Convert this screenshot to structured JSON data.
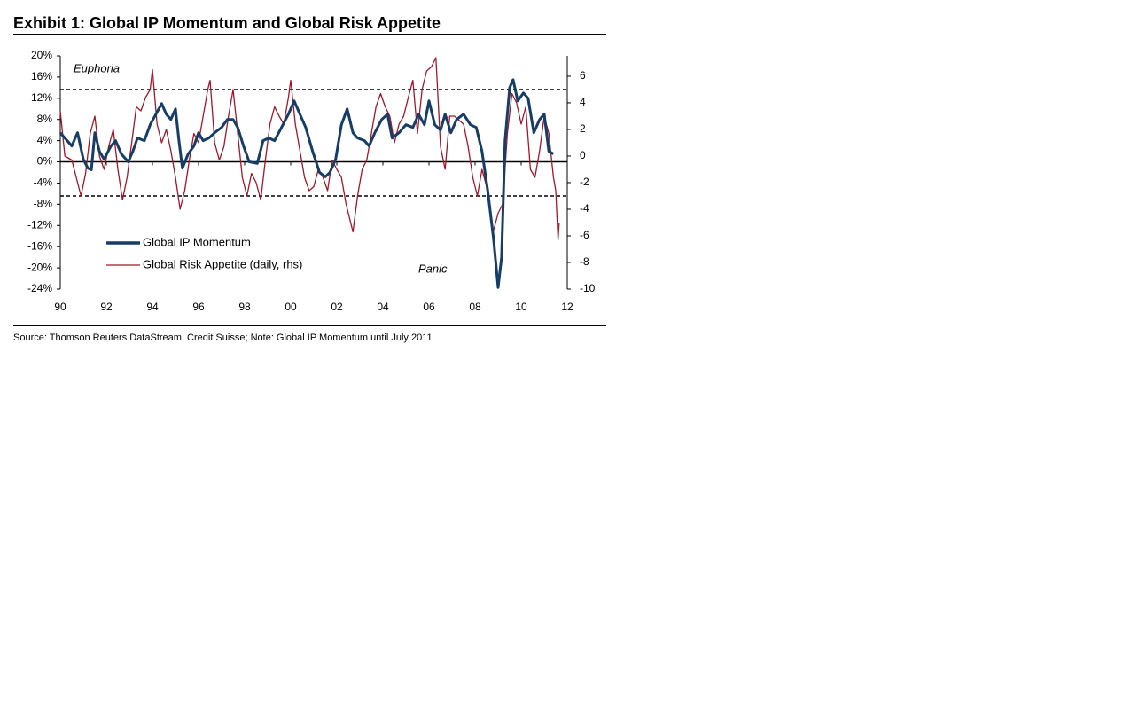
{
  "chart_data": {
    "type": "line",
    "title": "Exhibit 1: Global IP Momentum and Global Risk Appetite",
    "source": "Source: Thomson Reuters DataStream, Credit Suisse; Note: Global IP Momentum until July 2011",
    "annotations": [
      "Euphoria",
      "Panic"
    ],
    "xlim": [
      1990,
      2012
    ],
    "xticks": [
      {
        "value": 1990,
        "label": "90"
      },
      {
        "value": 1992,
        "label": "92"
      },
      {
        "value": 1994,
        "label": "94"
      },
      {
        "value": 1996,
        "label": "96"
      },
      {
        "value": 1998,
        "label": "98"
      },
      {
        "value": 2000,
        "label": "00"
      },
      {
        "value": 2002,
        "label": "02"
      },
      {
        "value": 2004,
        "label": "04"
      },
      {
        "value": 2006,
        "label": "06"
      },
      {
        "value": 2008,
        "label": "08"
      },
      {
        "value": 2010,
        "label": "10"
      },
      {
        "value": 2012,
        "label": "12"
      }
    ],
    "ylim": [
      -24,
      20
    ],
    "yticks": [
      {
        "value": 20,
        "label": "20%"
      },
      {
        "value": 16,
        "label": "16%"
      },
      {
        "value": 12,
        "label": "12%"
      },
      {
        "value": 8,
        "label": "8%"
      },
      {
        "value": 4,
        "label": "4%"
      },
      {
        "value": 0,
        "label": "0%"
      },
      {
        "value": -4,
        "label": "-4%"
      },
      {
        "value": -8,
        "label": "-8%"
      },
      {
        "value": -12,
        "label": "-12%"
      },
      {
        "value": -16,
        "label": "-16%"
      },
      {
        "value": -20,
        "label": "-20%"
      },
      {
        "value": -24,
        "label": "-24%"
      }
    ],
    "y2lim": [
      -10,
      7.53
    ],
    "y2ticks": [
      6,
      4,
      2,
      0,
      -2,
      -4,
      -6,
      -8,
      -10
    ],
    "y2_reference_lines": [
      5,
      -3
    ],
    "series": [
      {
        "name": "Global IP Momentum",
        "color": "#163d66",
        "axis": "y",
        "x": [
          1990.0,
          1990.3,
          1990.5,
          1990.75,
          1991.0,
          1991.2,
          1991.35,
          1991.5,
          1991.7,
          1991.9,
          1992.2,
          1992.4,
          1992.65,
          1992.95,
          1993.15,
          1993.35,
          1993.65,
          1993.9,
          1994.15,
          1994.4,
          1994.6,
          1994.8,
          1995.0,
          1995.15,
          1995.3,
          1995.55,
          1995.8,
          1996.0,
          1996.2,
          1996.45,
          1996.7,
          1997.0,
          1997.25,
          1997.5,
          1997.7,
          1997.95,
          1998.2,
          1998.55,
          1998.8,
          1999.05,
          1999.3,
          1999.6,
          1999.9,
          2000.15,
          2000.4,
          2000.65,
          2000.95,
          2001.25,
          2001.5,
          2001.7,
          2001.95,
          2002.2,
          2002.45,
          2002.7,
          2002.9,
          2003.2,
          2003.4,
          2003.65,
          2003.95,
          2004.2,
          2004.4,
          2004.7,
          2005.0,
          2005.3,
          2005.55,
          2005.8,
          2006.0,
          2006.25,
          2006.5,
          2006.7,
          2006.95,
          2007.2,
          2007.5,
          2007.8,
          2008.05,
          2008.3,
          2008.55,
          2008.8,
          2009.0,
          2009.15,
          2009.3,
          2009.5,
          2009.65,
          2009.85,
          2010.1,
          2010.3,
          2010.55,
          2010.8,
          2011.0,
          2011.2,
          2011.4
        ],
        "values": [
          5.5,
          4,
          3,
          5.5,
          0.5,
          -1.2,
          -1.5,
          5.5,
          2,
          0.5,
          3,
          4,
          1.5,
          0,
          2,
          4.5,
          4,
          7,
          9,
          11,
          9,
          8,
          10,
          4,
          -1.2,
          1.5,
          3,
          5.5,
          4,
          4.5,
          5.5,
          6.5,
          8,
          8,
          6.5,
          3,
          0,
          -0.3,
          4,
          4.5,
          4,
          6.5,
          9,
          11.5,
          9,
          6.5,
          2,
          -2,
          -2.8,
          -2,
          0.5,
          7,
          10,
          5.5,
          4.5,
          4,
          3,
          5.5,
          8,
          9,
          4.5,
          5.5,
          7,
          6.5,
          9,
          7,
          11.5,
          7,
          6,
          9,
          5.5,
          8,
          9,
          7,
          6.5,
          2,
          -5.5,
          -14.5,
          -23.7,
          -18,
          4,
          14,
          15.5,
          11.5,
          13,
          12,
          5.5,
          8,
          9,
          2,
          1.5
        ]
      },
      {
        "name": "Global Risk Appetite (daily, rhs)",
        "color": "#a3162b",
        "axis": "y2",
        "x": [
          1990.0,
          1990.2,
          1990.5,
          1990.9,
          1991.1,
          1991.3,
          1991.5,
          1991.7,
          1991.9,
          1992.1,
          1992.3,
          1992.5,
          1992.7,
          1992.9,
          1993.1,
          1993.3,
          1993.5,
          1993.7,
          1993.9,
          1994.0,
          1994.2,
          1994.4,
          1994.6,
          1994.8,
          1995.0,
          1995.2,
          1995.4,
          1995.6,
          1995.8,
          1996.0,
          1996.2,
          1996.4,
          1996.5,
          1996.7,
          1996.9,
          1997.1,
          1997.3,
          1997.5,
          1997.7,
          1997.9,
          1998.1,
          1998.3,
          1998.5,
          1998.7,
          1998.9,
          1999.1,
          1999.3,
          1999.5,
          1999.7,
          1999.9,
          2000.0,
          2000.2,
          2000.4,
          2000.6,
          2000.8,
          2001.0,
          2001.2,
          2001.4,
          2001.6,
          2001.8,
          2002.0,
          2002.2,
          2002.4,
          2002.6,
          2002.7,
          2002.9,
          2003.1,
          2003.3,
          2003.5,
          2003.7,
          2003.9,
          2004.1,
          2004.3,
          2004.5,
          2004.7,
          2004.9,
          2005.1,
          2005.3,
          2005.5,
          2005.7,
          2005.9,
          2006.1,
          2006.3,
          2006.5,
          2006.7,
          2006.9,
          2007.1,
          2007.3,
          2007.5,
          2007.7,
          2007.9,
          2008.1,
          2008.3,
          2008.5,
          2008.7,
          2008.8,
          2009.0,
          2009.2,
          2009.4,
          2009.6,
          2009.8,
          2010.0,
          2010.2,
          2010.4,
          2010.6,
          2010.8,
          2011.0,
          2011.2,
          2011.4,
          2011.5,
          2011.6,
          2011.65
        ],
        "values": [
          3.4,
          0,
          -0.3,
          -3,
          -1.3,
          1.7,
          3,
          0,
          -1,
          0.7,
          2,
          -1,
          -3.3,
          -1.6,
          1,
          3.7,
          3.4,
          4.4,
          5,
          6.5,
          2.4,
          1,
          2,
          0.4,
          -1.6,
          -4,
          -2.6,
          -0.3,
          1.7,
          1,
          3,
          5,
          5.7,
          1,
          -0.3,
          0.7,
          3,
          5,
          1.7,
          -1.6,
          -3,
          -1.3,
          -2,
          -3.3,
          -0.3,
          2.4,
          3.7,
          3,
          2.4,
          4.4,
          5.7,
          2.4,
          0.4,
          -1.6,
          -2.6,
          -2.3,
          -1,
          -1.6,
          -2.6,
          -0.3,
          -1,
          -1.6,
          -3.6,
          -5,
          -5.7,
          -3,
          -1,
          -0.3,
          1.7,
          3.7,
          4.7,
          3.7,
          3,
          1,
          2.4,
          3,
          4.4,
          5.7,
          1.7,
          5,
          6.4,
          6.7,
          7.4,
          0.7,
          -1,
          3,
          3,
          2.7,
          2.4,
          0.7,
          -1.6,
          -3,
          -1,
          -2.3,
          -5,
          -5.6,
          -4.3,
          -3.6,
          1.7,
          4.7,
          4,
          2.4,
          3.7,
          -1,
          -1.6,
          0.4,
          3,
          1.7,
          -1.6,
          -2.6,
          -6.3,
          -5
        ]
      }
    ]
  }
}
